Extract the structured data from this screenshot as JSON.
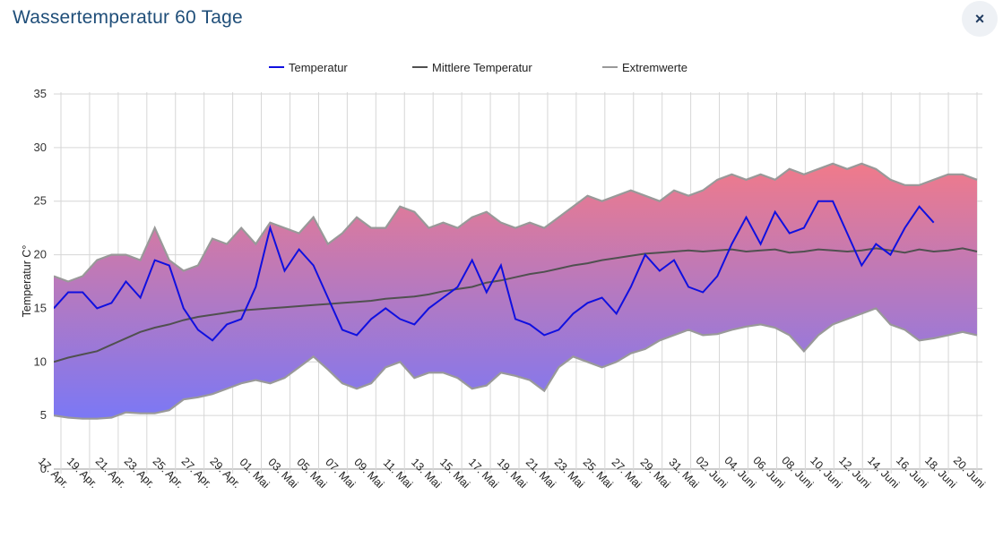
{
  "dialog": {
    "title": "Wassertemperatur 60 Tage",
    "close_label": "×"
  },
  "chart_data": {
    "type": "area",
    "title": "",
    "xlabel": "",
    "ylabel": "Temperatur C°",
    "ylim": [
      0,
      35
    ],
    "yticks": [
      0,
      5,
      10,
      15,
      20,
      25,
      30,
      35
    ],
    "grid": true,
    "legend_position": "top-center",
    "area_gradient": {
      "top": "#f07a8a",
      "bottom": "#7b78f5"
    },
    "x_tick_labels": [
      "17. Apr.",
      "19. Apr.",
      "21. Apr.",
      "23. Apr.",
      "25. Apr.",
      "27. Apr.",
      "29. Apr.",
      "01. Mai",
      "03. Mai",
      "05. Mai",
      "07. Mai",
      "09. Mai",
      "11. Mai",
      "13. Mai",
      "15. Mai",
      "17. Mai",
      "19. Mai",
      "21. Mai",
      "23. Mai",
      "25. Mai",
      "27. Mai",
      "29. Mai",
      "31. Mai",
      "02. Juni",
      "04. Juni",
      "06. Juni",
      "08. Juni",
      "10. Juni",
      "12. Juni",
      "14. Juni",
      "16. Juni",
      "18. Juni",
      "20. Juni"
    ],
    "x": [
      0,
      1,
      2,
      3,
      4,
      5,
      6,
      7,
      8,
      9,
      10,
      11,
      12,
      13,
      14,
      15,
      16,
      17,
      18,
      19,
      20,
      21,
      22,
      23,
      24,
      25,
      26,
      27,
      28,
      29,
      30,
      31,
      32,
      33,
      34,
      35,
      36,
      37,
      38,
      39,
      40,
      41,
      42,
      43,
      44,
      45,
      46,
      47,
      48,
      49,
      50,
      51,
      52,
      53,
      54,
      55,
      56,
      57,
      58,
      59,
      60,
      61,
      62,
      63,
      64
    ],
    "series": [
      {
        "name": "Temperatur",
        "color": "#1010e0",
        "values": [
          15.0,
          16.5,
          16.5,
          15.0,
          15.5,
          17.5,
          16.0,
          19.5,
          19.0,
          15.0,
          13.0,
          12.0,
          13.5,
          14.0,
          17.0,
          22.5,
          18.5,
          20.5,
          19.0,
          16.0,
          13.0,
          12.5,
          14.0,
          15.0,
          14.0,
          13.5,
          15.0,
          16.0,
          17.0,
          19.5,
          16.5,
          19.0,
          14.0,
          13.5,
          12.5,
          13.0,
          14.5,
          15.5,
          16.0,
          14.5,
          17.0,
          20.0,
          18.5,
          19.5,
          17.0,
          16.5,
          18.0,
          21.0,
          23.5,
          21.0,
          24.0,
          22.0,
          22.5,
          25.0,
          25.0,
          22.0,
          19.0,
          21.0,
          20.0,
          22.5,
          24.5,
          23.0,
          null,
          null,
          null
        ]
      },
      {
        "name": "Mittlere Temperatur",
        "color": "#505050",
        "values": [
          10.0,
          10.4,
          10.7,
          11.0,
          11.6,
          12.2,
          12.8,
          13.2,
          13.5,
          13.9,
          14.2,
          14.4,
          14.6,
          14.8,
          14.9,
          15.0,
          15.1,
          15.2,
          15.3,
          15.4,
          15.5,
          15.6,
          15.7,
          15.9,
          16.0,
          16.1,
          16.3,
          16.6,
          16.8,
          17.0,
          17.4,
          17.6,
          17.9,
          18.2,
          18.4,
          18.7,
          19.0,
          19.2,
          19.5,
          19.7,
          19.9,
          20.1,
          20.2,
          20.3,
          20.4,
          20.3,
          20.4,
          20.5,
          20.3,
          20.4,
          20.5,
          20.2,
          20.3,
          20.5,
          20.4,
          20.3,
          20.4,
          20.6,
          20.4,
          20.2,
          20.5,
          20.3,
          20.4,
          20.6,
          20.3
        ]
      },
      {
        "name": "Extremwerte",
        "color": "#999999",
        "min": [
          5.0,
          4.8,
          4.7,
          4.7,
          4.8,
          5.3,
          5.2,
          5.2,
          5.5,
          6.5,
          6.7,
          7.0,
          7.5,
          8.0,
          8.3,
          8.0,
          8.5,
          9.5,
          10.5,
          9.3,
          8.0,
          7.5,
          8.0,
          9.5,
          10.0,
          8.5,
          9.0,
          9.0,
          8.5,
          7.5,
          7.8,
          9.0,
          8.7,
          8.3,
          7.3,
          9.5,
          10.5,
          10.0,
          9.5,
          10.0,
          10.8,
          11.2,
          12.0,
          12.5,
          13.0,
          12.5,
          12.6,
          13.0,
          13.3,
          13.5,
          13.2,
          12.5,
          11.0,
          12.5,
          13.5,
          14.0,
          14.5,
          15.0,
          13.5,
          13.0,
          12.0,
          12.2,
          12.5,
          12.8,
          12.5
        ],
        "max": [
          18.0,
          17.5,
          18.0,
          19.5,
          20.0,
          20.0,
          19.5,
          22.5,
          19.5,
          18.5,
          19.0,
          21.5,
          21.0,
          22.5,
          21.0,
          23.0,
          22.5,
          22.0,
          23.5,
          21.0,
          22.0,
          23.5,
          22.5,
          22.5,
          24.5,
          24.0,
          22.5,
          23.0,
          22.5,
          23.5,
          24.0,
          23.0,
          22.5,
          23.0,
          22.5,
          23.5,
          24.5,
          25.5,
          25.0,
          25.5,
          26.0,
          25.5,
          25.0,
          26.0,
          25.5,
          26.0,
          27.0,
          27.5,
          27.0,
          27.5,
          27.0,
          28.0,
          27.5,
          28.0,
          28.5,
          28.0,
          28.5,
          28.0,
          27.0,
          26.5,
          26.5,
          27.0,
          27.5,
          27.5,
          27.0
        ]
      }
    ]
  }
}
